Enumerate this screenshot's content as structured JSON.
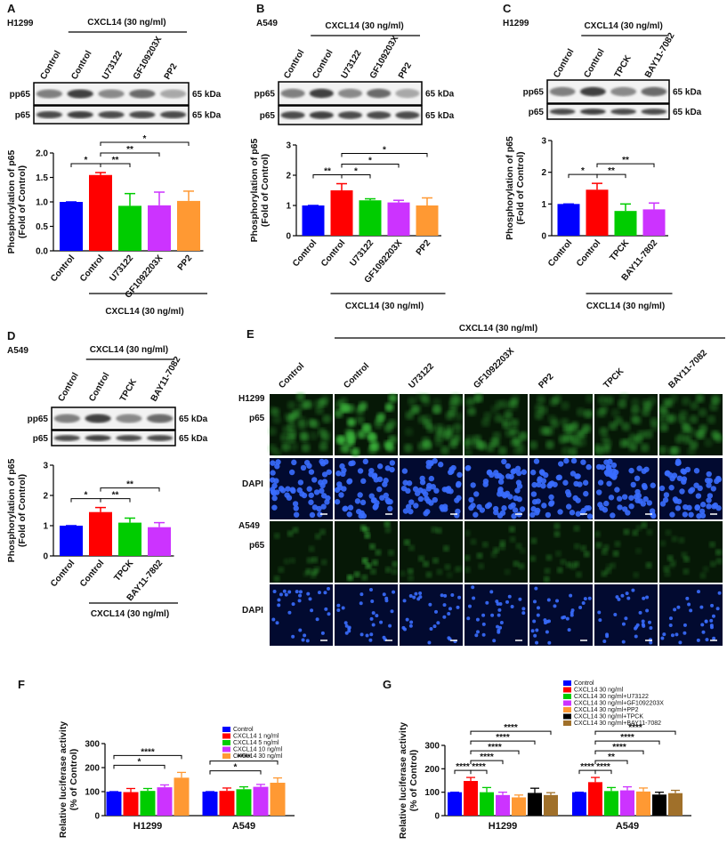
{
  "chart_data": [
    {
      "type": "bar",
      "panel": "A",
      "cell_line": "H1299",
      "categories": [
        "Control",
        "Control",
        "U73122",
        "GF1092203X",
        "PP2"
      ],
      "values": [
        1.0,
        1.55,
        0.92,
        0.93,
        1.02
      ],
      "errors": [
        0,
        0.05,
        0.25,
        0.27,
        0.2
      ],
      "colors": [
        "#0000ff",
        "#ff0000",
        "#00cc00",
        "#cc33ff",
        "#ff9933"
      ],
      "ylabel": [
        "Phosphorylation of p65",
        "(Fold of Control)"
      ],
      "ylim": [
        0,
        2
      ],
      "yticks": [
        {
          "value": 0,
          "label": "0.0"
        },
        0.5,
        {
          "value": 1,
          "label": "1.0"
        },
        1.5,
        {
          "value": 2,
          "label": "2.0"
        }
      ],
      "group_label": "CXCL14 (30 ng/ml)",
      "comparisons": [
        {
          "from": 1,
          "to": 0,
          "label": "*"
        },
        {
          "from": 1,
          "to": 2,
          "label": "**"
        },
        {
          "from": 1,
          "to": 3,
          "label": "**"
        },
        {
          "from": 1,
          "to": 4,
          "label": "*"
        }
      ]
    },
    {
      "type": "bar",
      "panel": "B",
      "cell_line": "A549",
      "categories": [
        "Control",
        "Control",
        "U73122",
        "GF1092203X",
        "PP2"
      ],
      "values": [
        1.0,
        1.5,
        1.17,
        1.1,
        1.0
      ],
      "errors": [
        0,
        0.22,
        0.05,
        0.07,
        0.25
      ],
      "colors": [
        "#0000ff",
        "#ff0000",
        "#00cc00",
        "#cc33ff",
        "#ff9933"
      ],
      "ylabel": [
        "Phosphorylation of p65",
        "(Fold of Control)"
      ],
      "ylim": [
        0,
        3
      ],
      "yticks": [
        0,
        1,
        2,
        3
      ],
      "group_label": "CXCL14 (30 ng/ml)",
      "comparisons": [
        {
          "from": 1,
          "to": 0,
          "label": "**"
        },
        {
          "from": 1,
          "to": 2,
          "label": "*"
        },
        {
          "from": 1,
          "to": 3,
          "label": "*"
        },
        {
          "from": 1,
          "to": 4,
          "label": "*"
        }
      ]
    },
    {
      "type": "bar",
      "panel": "C",
      "cell_line": "H1299",
      "categories": [
        "Control",
        "Control",
        "TPCK",
        "BAY11-7802"
      ],
      "values": [
        1.0,
        1.45,
        0.78,
        0.83
      ],
      "errors": [
        0,
        0.2,
        0.22,
        0.2
      ],
      "colors": [
        "#0000ff",
        "#ff0000",
        "#00cc00",
        "#cc33ff"
      ],
      "ylabel": [
        "Phosphorylation of p65",
        "(Fold of Control)"
      ],
      "ylim": [
        0,
        3
      ],
      "yticks": [
        0,
        1,
        2,
        3
      ],
      "group_label": "CXCL14 (30 ng/ml)",
      "comparisons": [
        {
          "from": 1,
          "to": 0,
          "label": "*"
        },
        {
          "from": 1,
          "to": 2,
          "label": "**"
        },
        {
          "from": 1,
          "to": 3,
          "label": "**"
        }
      ]
    },
    {
      "type": "bar",
      "panel": "D",
      "cell_line": "A549",
      "categories": [
        "Control",
        "Control",
        "TPCK",
        "BAY11-7802"
      ],
      "values": [
        1.0,
        1.45,
        1.1,
        0.95
      ],
      "errors": [
        0,
        0.15,
        0.15,
        0.15
      ],
      "colors": [
        "#0000ff",
        "#ff0000",
        "#00cc00",
        "#cc33ff"
      ],
      "ylabel": [
        "Phosphorylation of p65",
        "(Fold of Control)"
      ],
      "ylim": [
        0,
        3
      ],
      "yticks": [
        0,
        1,
        2,
        3
      ],
      "group_label": "CXCL14 (30 ng/ml)",
      "comparisons": [
        {
          "from": 1,
          "to": 0,
          "label": "*"
        },
        {
          "from": 1,
          "to": 2,
          "label": "**"
        },
        {
          "from": 1,
          "to": 3,
          "label": "**"
        }
      ]
    },
    {
      "type": "groupedbar",
      "panel": "F",
      "categories": [
        "H1299",
        "A549"
      ],
      "series": [
        {
          "name": "Control",
          "color": "#0000ff",
          "values": [
            100,
            100
          ],
          "errors": [
            0,
            0
          ]
        },
        {
          "name": "CXCL14 1 ng/ml",
          "color": "#ff0000",
          "values": [
            98,
            103
          ],
          "errors": [
            15,
            12
          ]
        },
        {
          "name": "CXCL14 5 ng/ml",
          "color": "#00cc00",
          "values": [
            103,
            110
          ],
          "errors": [
            10,
            10
          ]
        },
        {
          "name": "CXCL14 10 ng/ml",
          "color": "#cc33ff",
          "values": [
            118,
            120
          ],
          "errors": [
            10,
            10
          ]
        },
        {
          "name": "CXCL14 30 ng/ml",
          "color": "#ff9933",
          "values": [
            158,
            137
          ],
          "errors": [
            22,
            20
          ]
        }
      ],
      "ylabel": [
        "Relative luciferase activity",
        "(% of Control)"
      ],
      "ylim": [
        0,
        300
      ],
      "yticks": [
        0,
        100,
        200,
        300
      ],
      "comparisons": [
        [
          {
            "from": 0,
            "to": 3,
            "label": "*"
          },
          {
            "from": 0,
            "to": 4,
            "label": "****"
          }
        ],
        [
          {
            "from": 0,
            "to": 3,
            "label": "*"
          },
          {
            "from": 0,
            "to": 4,
            "label": "****"
          }
        ]
      ]
    },
    {
      "type": "groupedbar",
      "panel": "G",
      "categories": [
        "H1299",
        "A549"
      ],
      "series": [
        {
          "name": "Control",
          "color": "#0000ff",
          "values": [
            100,
            100
          ],
          "errors": [
            0,
            0
          ]
        },
        {
          "name": "CXCL14 30 ng/ml",
          "color": "#ff0000",
          "values": [
            148,
            143
          ],
          "errors": [
            15,
            20
          ]
        },
        {
          "name": "CXCL14 30 ng/ml+U73122",
          "color": "#00cc00",
          "values": [
            100,
            105
          ],
          "errors": [
            20,
            15
          ]
        },
        {
          "name": "CXCL14 30 ng/ml+GF1092203X",
          "color": "#cc33ff",
          "values": [
            88,
            108
          ],
          "errors": [
            12,
            15
          ]
        },
        {
          "name": "CXCL14 30 ng/ml+PP2",
          "color": "#ff9933",
          "values": [
            78,
            103
          ],
          "errors": [
            10,
            15
          ]
        },
        {
          "name": "CXCL14 30 ng/ml+TPCK",
          "color": "#000000",
          "values": [
            97,
            90
          ],
          "errors": [
            20,
            10
          ]
        },
        {
          "name": "CXCL14 30 ng/ml+BAY11-7082",
          "color": "#a0702a",
          "values": [
            88,
            96
          ],
          "errors": [
            10,
            12
          ]
        }
      ],
      "ylabel": [
        "Relative luciferase activity",
        "(% of Control)"
      ],
      "ylim": [
        0,
        300
      ],
      "yticks": [
        0,
        100,
        200,
        300
      ],
      "comparisons": [
        [
          {
            "from": 1,
            "to": 0,
            "label": "****"
          },
          {
            "from": 1,
            "to": 2,
            "label": "****"
          },
          {
            "from": 1,
            "to": 3,
            "label": "****"
          },
          {
            "from": 1,
            "to": 4,
            "label": "****"
          },
          {
            "from": 1,
            "to": 5,
            "label": "****"
          },
          {
            "from": 1,
            "to": 6,
            "label": "****"
          }
        ],
        [
          {
            "from": 1,
            "to": 0,
            "label": "****"
          },
          {
            "from": 1,
            "to": 2,
            "label": "****"
          },
          {
            "from": 1,
            "to": 3,
            "label": "**"
          },
          {
            "from": 1,
            "to": 4,
            "label": "****"
          },
          {
            "from": 1,
            "to": 5,
            "label": "****"
          },
          {
            "from": 1,
            "to": 6,
            "label": "****"
          }
        ]
      ]
    }
  ],
  "blots": [
    {
      "header": "CXCL14 (30 ng/ml)",
      "lanes": [
        "Control",
        "Control",
        "U73122",
        "GF109203X",
        "PP2"
      ],
      "rows": [
        "pp65",
        "p65"
      ],
      "sizes": [
        "65 kDa",
        "65 kDa"
      ]
    },
    {
      "header": "CXCL14 (30 ng/ml)",
      "lanes": [
        "Control",
        "Control",
        "U73122",
        "GF109203X",
        "PP2"
      ],
      "rows": [
        "pp65",
        "p65"
      ],
      "sizes": [
        "65 kDa",
        "65 kDa"
      ]
    },
    {
      "header": "CXCL14 (30 ng/ml)",
      "lanes": [
        "Control",
        "Control",
        "TPCK",
        "BAY11-7082"
      ],
      "rows": [
        "pp65",
        "p65"
      ],
      "sizes": [
        "65 kDa",
        "65 kDa"
      ]
    },
    {
      "header": "CXCL14 (30 ng/ml)",
      "lanes": [
        "Control",
        "Control",
        "TPCK",
        "BAY11-7082"
      ],
      "rows": [
        "pp65",
        "p65"
      ],
      "sizes": [
        "65 kDa",
        "65 kDa"
      ]
    }
  ],
  "imaging": {
    "panel": "E",
    "header": "CXCL14 (30 ng/ml)",
    "columns": [
      "Control",
      "Control",
      "U73122",
      "GF1092203X",
      "PP2",
      "TPCK",
      "BAY11-7082"
    ],
    "rows": [
      {
        "cell_line": "H1299",
        "stain": "p65"
      },
      {
        "stain": "DAPI"
      },
      {
        "cell_line": "A549",
        "stain": "p65"
      },
      {
        "stain": "DAPI"
      }
    ]
  }
}
